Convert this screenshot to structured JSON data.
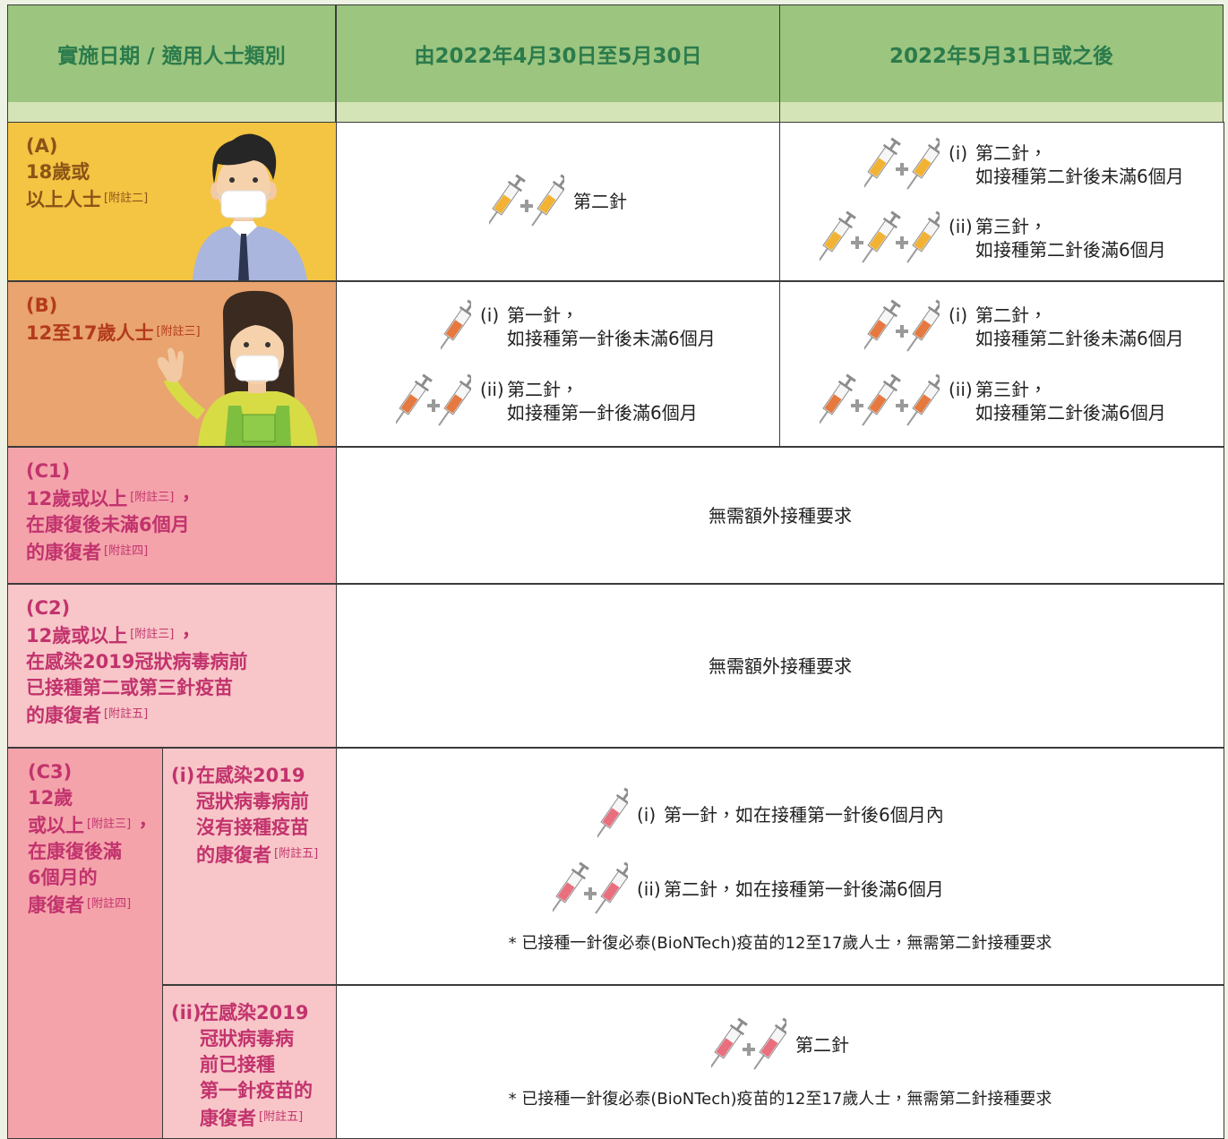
{
  "header": {
    "criteria": "實施日期 / 適用人士類別",
    "period_1": "由2022年4月30日至5月30日",
    "period_2": "2022年5月31日或之後"
  },
  "rows": [
    {
      "label": [
        [
          "(A)"
        ],
        [
          "18歲或"
        ],
        [
          "以上人士",
          "[附註二]"
        ]
      ],
      "period_1": {
        "items": [
          {
            "text": "第二針"
          }
        ]
      },
      "period_2": {
        "items": [
          {
            "marker": "(i)",
            "text": "第二針，",
            "detail": "如接種第二針後未滿6個月"
          },
          {
            "marker": "(ii)",
            "text": "第三針，",
            "detail": "如接種第二針後滿6個月"
          }
        ]
      }
    },
    {
      "label": [
        [
          "(B)"
        ],
        [
          "12至17歲人士",
          "[附註三]"
        ]
      ],
      "period_1": {
        "items": [
          {
            "marker": "(i)",
            "text": "第一針，",
            "detail": "如接種第一針後未滿6個月"
          },
          {
            "marker": "(ii)",
            "text": "第二針，",
            "detail": "如接種第一針後滿6個月"
          }
        ]
      },
      "period_2": {
        "items": [
          {
            "marker": "(i)",
            "text": "第二針，",
            "detail": "如接種第二針後未滿6個月"
          },
          {
            "marker": "(ii)",
            "text": "第三針，",
            "detail": "如接種第二針後滿6個月"
          }
        ]
      }
    },
    {
      "label": [
        [
          "(C1)"
        ],
        [
          "12歲或以上",
          "[附註三]",
          "，"
        ],
        [
          "在康復後未滿6個月"
        ],
        [
          "的康復者",
          "[附註四]"
        ]
      ],
      "requirement": "無需額外接種要求"
    },
    {
      "label": [
        [
          "(C2)"
        ],
        [
          "12歲或以上",
          "[附註三]",
          "，"
        ],
        [
          "在感染2019冠狀病毒病前"
        ],
        [
          "已接種第二或第三針疫苗"
        ],
        [
          "的康復者",
          "[附註五]"
        ]
      ],
      "requirement": "無需額外接種要求"
    },
    {
      "label": [
        [
          "(C3)"
        ],
        [
          "12歲"
        ],
        [
          "或以上",
          "[附註三]",
          "，"
        ],
        [
          "在康復後滿"
        ],
        [
          "6個月的"
        ],
        [
          "康復者",
          "[附註四]"
        ]
      ],
      "subrows": [
        {
          "marker": "(i)",
          "label": [
            [
              "在感染2019"
            ],
            [
              "冠狀病毒病前"
            ],
            [
              "沒有接種疫苗"
            ],
            [
              "的康復者",
              "[附註五]"
            ]
          ],
          "items": [
            {
              "marker": "(i)",
              "text": "第一針，如在接種第一針後6個月內"
            },
            {
              "marker": "(ii)",
              "text": "第二針，如在接種第一針後滿6個月"
            }
          ],
          "footnote": "* 已接種一針復必泰(BioNTech)疫苗的12至17歲人士，無需第二針接種要求"
        },
        {
          "marker": "(ii)",
          "label": [
            [
              "在感染2019"
            ],
            [
              "冠狀病毒病"
            ],
            [
              "前已接種"
            ],
            [
              "第一針疫苗的"
            ],
            [
              "康復者",
              "[附註五]"
            ]
          ],
          "items": [
            {
              "text": "第二針"
            }
          ],
          "footnote": "* 已接種一針復必泰(BioNTech)疫苗的12至17歲人士，無需第二針接種要求"
        }
      ]
    }
  ]
}
